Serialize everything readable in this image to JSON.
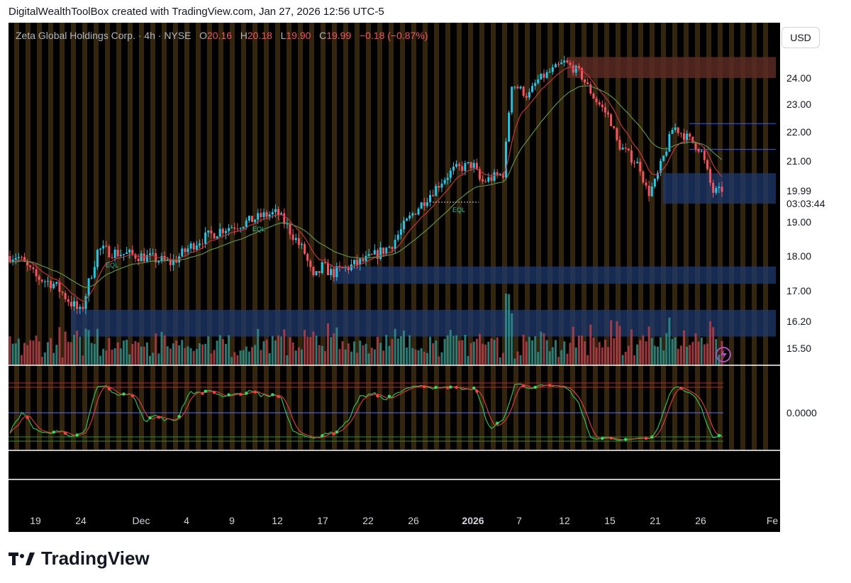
{
  "header": {
    "text": "DigitalWealthToolBox created with TradingView.com, Jan 27, 2026 12:56 UTC-5"
  },
  "currency": "USD",
  "legend": {
    "symbol": "Zeta Global Holdings Corp. · 4h · NYSE",
    "open_label": "O",
    "open": "20.16",
    "high_label": "H",
    "high": "20.18",
    "low_label": "L",
    "low": "19.90",
    "close_label": "C",
    "close": "19.99",
    "change": "−0.18 (−0.87%)"
  },
  "last_price": {
    "value": "19.99",
    "countdown": "03:03:44"
  },
  "oscillator": {
    "zero_label": "0.0000"
  },
  "footer": {
    "brand": "TradingView"
  },
  "annotations": [
    "EQL",
    "EQL",
    "EQL"
  ],
  "colors": {
    "up": "#22c7e6",
    "down": "#f7525f",
    "ema_fast": "#c7323c",
    "ema_slow": "#5a8f4e",
    "session_stripe": "#3a2a10",
    "demand_zone": "#1f3a6e",
    "supply_zone": "#5a2a22"
  },
  "chart_data": [
    {
      "type": "candlestick",
      "title": "",
      "y_tick_labels": [
        "24.00",
        "23.00",
        "22.00",
        "21.00",
        "19.00",
        "18.00",
        "17.00",
        "16.20",
        "15.50"
      ],
      "y_ticks": [
        24.0,
        23.0,
        22.0,
        21.0,
        19.0,
        18.0,
        17.0,
        16.2,
        15.5
      ],
      "ylim": [
        15.3,
        24.9
      ],
      "log_scale": true,
      "x_tick_labels": [
        "19",
        "24",
        "Dec",
        "4",
        "9",
        "12",
        "17",
        "22",
        "26",
        "2026",
        "7",
        "12",
        "15",
        "21",
        "26",
        "Fe"
      ],
      "x_ticks": [
        "2025-11-19",
        "2025-11-24",
        "2025-12-01",
        "2025-12-04",
        "2025-12-09",
        "2025-12-12",
        "2025-12-17",
        "2025-12-22",
        "2025-12-26",
        "2026-01-01",
        "2026-01-07",
        "2026-01-12",
        "2026-01-15",
        "2026-01-21",
        "2026-01-26",
        "2026-02-01"
      ],
      "price_path": [
        {
          "x": "2025-11-17",
          "y": 18.0
        },
        {
          "x": "2025-11-19",
          "y": 17.4
        },
        {
          "x": "2025-11-21",
          "y": 17.2
        },
        {
          "x": "2025-11-24",
          "y": 16.4
        },
        {
          "x": "2025-11-25",
          "y": 17.3
        },
        {
          "x": "2025-11-26",
          "y": 18.2
        },
        {
          "x": "2025-11-28",
          "y": 18.1
        },
        {
          "x": "2025-12-01",
          "y": 18.0
        },
        {
          "x": "2025-12-03",
          "y": 17.8
        },
        {
          "x": "2025-12-05",
          "y": 18.4
        },
        {
          "x": "2025-12-08",
          "y": 18.8
        },
        {
          "x": "2025-12-10",
          "y": 19.0
        },
        {
          "x": "2025-12-11",
          "y": 19.2
        },
        {
          "x": "2025-12-12",
          "y": 19.3
        },
        {
          "x": "2025-12-15",
          "y": 18.1
        },
        {
          "x": "2025-12-16",
          "y": 17.3
        },
        {
          "x": "2025-12-17",
          "y": 17.7
        },
        {
          "x": "2025-12-18",
          "y": 17.5
        },
        {
          "x": "2025-12-22",
          "y": 17.9
        },
        {
          "x": "2025-12-24",
          "y": 18.3
        },
        {
          "x": "2025-12-26",
          "y": 19.3
        },
        {
          "x": "2025-12-29",
          "y": 20.4
        },
        {
          "x": "2025-12-30",
          "y": 20.7
        },
        {
          "x": "2026-01-01",
          "y": 20.9
        },
        {
          "x": "2026-01-02",
          "y": 20.3
        },
        {
          "x": "2026-01-05",
          "y": 20.6
        },
        {
          "x": "2026-01-06",
          "y": 23.8
        },
        {
          "x": "2026-01-07",
          "y": 23.6
        },
        {
          "x": "2026-01-08",
          "y": 23.3
        },
        {
          "x": "2026-01-09",
          "y": 23.9
        },
        {
          "x": "2026-01-12",
          "y": 24.6
        },
        {
          "x": "2026-01-13",
          "y": 24.2
        },
        {
          "x": "2026-01-14",
          "y": 23.2
        },
        {
          "x": "2026-01-15",
          "y": 22.5
        },
        {
          "x": "2026-01-16",
          "y": 21.6
        },
        {
          "x": "2026-01-19",
          "y": 20.8
        },
        {
          "x": "2026-01-20",
          "y": 19.9
        },
        {
          "x": "2026-01-21",
          "y": 20.3
        },
        {
          "x": "2026-01-22",
          "y": 21.2
        },
        {
          "x": "2026-01-23",
          "y": 22.2
        },
        {
          "x": "2026-01-26",
          "y": 21.4
        },
        {
          "x": "2026-01-27",
          "y": 19.99
        }
      ],
      "levels": [
        {
          "kind": "resistance_line",
          "y": 22.3
        },
        {
          "kind": "resistance_line",
          "y": 21.4
        },
        {
          "kind": "supply_zone",
          "y_range": [
            24.0,
            24.8
          ]
        },
        {
          "kind": "demand_zone",
          "y_range": [
            19.6,
            20.6
          ]
        },
        {
          "kind": "demand_zone",
          "y_range": [
            17.2,
            17.7
          ]
        },
        {
          "kind": "demand_zone",
          "y_range": [
            15.8,
            16.5
          ]
        }
      ],
      "last_close": 19.99
    },
    {
      "type": "line",
      "title": "",
      "y_tick_labels": [
        "0.0000"
      ],
      "y_ticks": [
        0
      ],
      "ylim": [
        -1,
        1
      ]
    }
  ]
}
